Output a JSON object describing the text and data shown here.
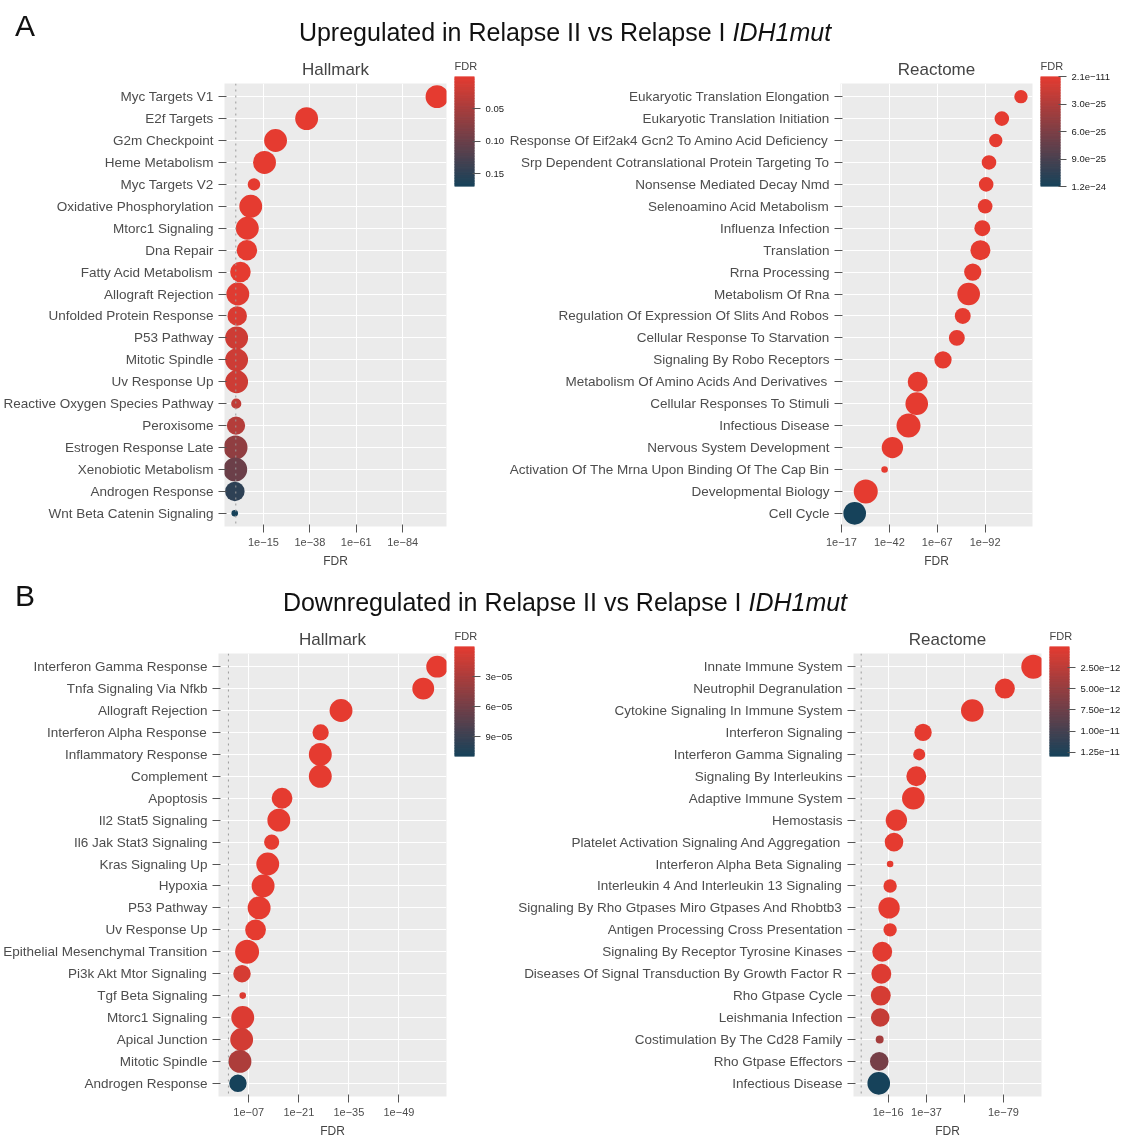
{
  "chart_data": [
    {
      "type": "bubble",
      "orientation": "horizontal",
      "title": "Hallmark",
      "xlabel": "FDR",
      "clabel": "FDR",
      "annotations": [
        "A",
        "Upregulated in Relapse II vs Relapse I IDH1mut"
      ],
      "log": "x",
      "grid": true,
      "marker": "circle",
      "categories": [
        "Myc Targets V1",
        "E2f Targets",
        "G2m Checkpoint",
        "Heme Metabolism",
        "Myc Targets V2",
        "Oxidative Phosphorylation",
        "Mtorc1 Signaling",
        "Dna Repair",
        "Fatty Acid Metabolism",
        "Allograft Rejection",
        "Unfolded Protein Response",
        "P53 Pathway",
        "Mitotic Spindle",
        "Uv Response Up",
        "Reactive Oxygen Species Pathway",
        "Peroxisome",
        "Estrogen Response Late",
        "Xenobiotic Metabolism",
        "Androgen Response",
        "Wnt Beta Catenin Signaling"
      ],
      "values": [
        1e-101,
        4e-37,
        1e-21,
        3e-16,
        5e-11,
        2e-09,
        1e-07,
        1.6e-07,
        0.00025,
        0.005,
        0.01,
        0.02,
        0.02,
        0.02,
        0.03,
        0.04,
        0.07,
        0.1,
        0.15,
        0.17
      ],
      "cvalues": [
        1e-101,
        4e-37,
        1e-21,
        3e-16,
        5e-11,
        2e-09,
        1e-07,
        1.6e-07,
        0.00025,
        0.005,
        0.01,
        0.02,
        0.02,
        0.02,
        0.03,
        0.04,
        0.07,
        0.1,
        0.15,
        0.17
      ],
      "sizes": [
        0.91,
        0.91,
        0.91,
        0.91,
        0.27,
        0.91,
        0.91,
        0.73,
        0.73,
        0.91,
        0.66,
        0.91,
        0.91,
        0.91,
        0.18,
        0.58,
        1,
        1,
        0.66,
        0.075
      ],
      "xlim": [
        20000,
        2e-106
      ],
      "xticks": [
        {
          "value": 1e-15,
          "label": "1e−15"
        },
        {
          "value": 1e-38,
          "label": "1e−38"
        },
        {
          "value": 1e-61,
          "label": "1e−61"
        },
        {
          "value": 1e-84,
          "label": "1e−84"
        }
      ],
      "clim": [
        0,
        0.17
      ],
      "cticks": [
        0.05,
        {
          "value": 0.1,
          "label": "0.10"
        },
        0.15
      ],
      "ref_lines": [
        {
          "axis": "x",
          "value": 0.05,
          "line_style": "dotted",
          "color": "#9a9a9a"
        }
      ]
    },
    {
      "type": "bubble",
      "orientation": "horizontal",
      "title": "Reactome",
      "xlabel": "FDR",
      "clabel": "FDR",
      "log": "x",
      "grid": true,
      "marker": "circle",
      "categories": [
        "Eukaryotic Translation Elongation",
        "Eukaryotic Translation Initiation",
        "Response Of Eif2ak4 Gcn2 To Amino Acid Deficiency",
        "Srp Dependent Cotranslational Protein Targeting To",
        "Nonsense Mediated Decay Nmd",
        "Selenoamino Acid Metabolism",
        "Influenza Infection",
        "Translation",
        "Rrna Processing",
        "Metabolism Of Rna",
        "Regulation Of Expression Of Slits And Robos",
        "Cellular Response To Starvation",
        "Signaling By Robo Receptors",
        "Metabolism Of Amino Acids And Derivatives",
        "Cellular Responses To Stimuli",
        "Infectious Disease",
        "Nervous System Development",
        "Activation Of The Mrna Upon Binding Of The Cap Bin",
        "Developmental Biology",
        "Cell Cycle"
      ],
      "values": [
        2.1e-111,
        2e-101,
        3e-98,
        1e-94,
        3e-93,
        1e-92,
        3e-91,
        3e-90,
        3e-86,
        4e-84,
        5e-81,
        6e-78,
        1e-70,
        1.6e-57,
        5e-57,
        1e-52,
        2.5e-44,
        3e-40,
        2e-30,
        1.2e-24
      ],
      "cvalues": [
        2.1e-111,
        2e-101,
        3e-98,
        1e-94,
        3e-93,
        1e-92,
        3e-91,
        3e-90,
        3e-86,
        4e-84,
        5e-81,
        6e-78,
        1e-70,
        1.6e-57,
        5e-57,
        1e-52,
        2.5e-44,
        3e-40,
        2e-30,
        1.2e-24
      ],
      "sizes": [
        0.31,
        0.37,
        0.31,
        0.37,
        0.37,
        0.37,
        0.44,
        0.69,
        0.52,
        0.89,
        0.44,
        0.44,
        0.52,
        0.69,
        0.89,
        1,
        0.79,
        0.075,
        1,
        0.89
      ],
      "xlim": [
        3e-17,
        2e-117
      ],
      "xticks": [
        {
          "value": 1e-17,
          "label": "1e−17"
        },
        {
          "value": 1e-42,
          "label": "1e−42"
        },
        {
          "value": 1e-67,
          "label": "1e−67"
        },
        {
          "value": 1e-92,
          "label": "1e−92"
        }
      ],
      "clim": [
        2.1e-111,
        1.2e-24
      ],
      "cticks": [
        {
          "value": 2.1e-111,
          "label": "2.1e−111"
        },
        {
          "value": 3e-25,
          "label": "3.0e−25"
        },
        {
          "value": 6e-25,
          "label": "6.0e−25"
        },
        {
          "value": 9e-25,
          "label": "9.0e−25"
        },
        {
          "value": 1.2e-24,
          "label": "1.2e−24"
        }
      ]
    },
    {
      "type": "bubble",
      "orientation": "horizontal",
      "title": "Hallmark",
      "xlabel": "FDR",
      "clabel": "FDR",
      "annotations": [
        "B",
        "Downregulated in Relapse II vs Relapse I IDH1mut"
      ],
      "log": "x",
      "grid": true,
      "marker": "circle",
      "categories": [
        "Interferon Gamma Response",
        "Tnfa Signaling Via Nfkb",
        "Allograft Rejection",
        "Interferon Alpha Response",
        "Inflammatory Response",
        "Complement",
        "Apoptosis",
        "Il2 Stat5 Signaling",
        "Il6 Jak Stat3 Signaling",
        "Kras Signaling Up",
        "Hypoxia",
        "P53 Pathway",
        "Uv Response Up",
        "Epithelial Mesenchymal Transition",
        "Pi3k Akt Mtor Signaling",
        "Tgf Beta Signaling",
        "Mtorc1 Signaling",
        "Apical Junction",
        "Mitotic Spindle",
        "Androgen Response"
      ],
      "values": [
        2e-60,
        1.6e-56,
        1.6e-33,
        8e-28,
        1e-27,
        1e-27,
        5e-17,
        4e-16,
        4e-14,
        5e-13,
        1e-11,
        1.3e-10,
        1.3e-09,
        3e-07,
        8e-06,
        5e-06,
        5e-06,
        1e-05,
        3e-05,
        0.00011
      ],
      "cvalues": [
        2e-60,
        1.6e-56,
        1.6e-33,
        8e-28,
        1e-27,
        1e-27,
        5e-17,
        4e-16,
        4e-14,
        5e-13,
        1e-11,
        1.3e-10,
        1.3e-09,
        3e-07,
        8e-06,
        5e-06,
        5e-06,
        1e-05,
        3e-05,
        0.00011
      ],
      "sizes": [
        0.83,
        0.83,
        0.91,
        0.46,
        0.91,
        0.91,
        0.75,
        0.91,
        0.4,
        0.91,
        0.91,
        0.91,
        0.75,
        1,
        0.53,
        0.075,
        0.91,
        0.91,
        0.91,
        0.53
      ],
      "xlim": [
        30,
        5e-63
      ],
      "xticks": [
        {
          "value": 1e-07,
          "label": "1e−07"
        },
        {
          "value": 1e-21,
          "label": "1e−21"
        },
        {
          "value": 1e-35,
          "label": "1e−35"
        },
        {
          "value": 1e-49,
          "label": "1e−49"
        }
      ],
      "clim": [
        0,
        0.00011
      ],
      "cticks": [
        {
          "value": 3e-05,
          "label": "3e−05"
        },
        {
          "value": 6e-05,
          "label": "6e−05"
        },
        {
          "value": 9e-05,
          "label": "9e−05"
        }
      ],
      "ref_lines": [
        {
          "axis": "x",
          "value": 0.05,
          "line_style": "dotted",
          "color": "#9a9a9a"
        }
      ]
    },
    {
      "type": "bubble",
      "orientation": "horizontal",
      "title": "Reactome",
      "xlabel": "FDR",
      "clabel": "FDR",
      "log": "x",
      "grid": true,
      "marker": "circle",
      "categories": [
        "Innate Immune System",
        "Neutrophil Degranulation",
        "Cytokine Signaling In Immune System",
        "Interferon Signaling",
        "Interferon Gamma Signaling",
        "Signaling By Interleukins",
        "Adaptive Immune System",
        "Hemostasis",
        "Platelet Activation Signaling And Aggregation",
        "Interferon Alpha Beta Signaling",
        "Interleukin 4 And Interleukin 13 Signaling",
        "Signaling By Rho Gtpases Miro Gtpases And Rhobtb3",
        "Antigen Processing Cross Presentation",
        "Signaling By Receptor Tyrosine Kinases",
        "Diseases Of Signal Transduction By Growth Factor R",
        "Rho Gtpase Cycle",
        "Leishmania Infection",
        "Costimulation By The Cd28 Family",
        "Rho Gtpase Effectors",
        "Infectious Disease"
      ],
      "values": [
        5e-96,
        1.6e-80,
        1e-62,
        8e-36,
        1e-33,
        4e-32,
        1.6e-30,
        3e-21,
        6e-20,
        8e-18,
        8e-18,
        3e-17,
        8e-18,
        1.6e-13,
        5e-13,
        1e-12,
        2e-12,
        4e-12,
        7e-12,
        1.3e-11
      ],
      "cvalues": [
        5e-96,
        1.6e-80,
        1e-62,
        8e-36,
        1e-33,
        4e-32,
        1.6e-30,
        3e-21,
        6e-20,
        8e-18,
        8e-18,
        3e-17,
        8e-18,
        1.6e-13,
        5e-13,
        1e-12,
        2e-12,
        4e-12,
        7e-12,
        1.3e-11
      ],
      "sizes": [
        1,
        0.69,
        0.89,
        0.52,
        0.25,
        0.69,
        0.89,
        0.79,
        0.6,
        0.075,
        0.31,
        0.79,
        0.31,
        0.69,
        0.69,
        0.69,
        0.6,
        0.11,
        0.6,
        0.89
      ],
      "xlim": [
        800,
        1.6e-100
      ],
      "xticks": [
        {
          "value": 1e-16,
          "label": "1e−16"
        },
        {
          "value": 1e-37,
          "label": "1e−37"
        },
        {
          "value": 1e-58,
          "label": null
        },
        {
          "value": 1e-79,
          "label": "1e−79"
        }
      ],
      "clim": [
        0,
        1.3e-11
      ],
      "cticks": [
        {
          "value": 2.5e-12,
          "label": "2.50e−12"
        },
        {
          "value": 5e-12,
          "label": "5.00e−12"
        },
        {
          "value": 7.5e-12,
          "label": "7.50e−12"
        },
        {
          "value": 1e-11,
          "label": "1.00e−11"
        },
        {
          "value": 1.25e-11,
          "label": "1.25e−11"
        }
      ],
      "ref_lines": [
        {
          "axis": "x",
          "value": 0.05,
          "line_style": "dotted",
          "color": "#9a9a9a"
        }
      ]
    }
  ]
}
